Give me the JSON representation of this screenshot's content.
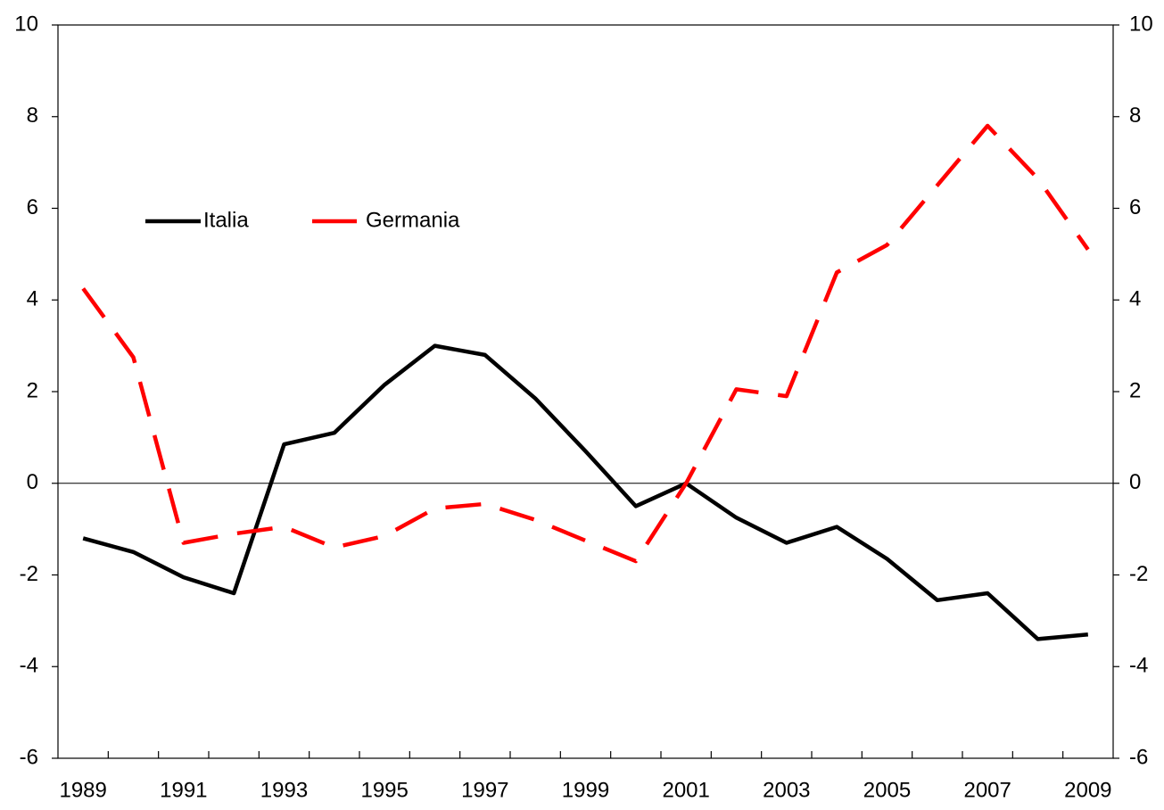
{
  "chart_data": {
    "type": "line",
    "categories": [
      "1989",
      null,
      "1991",
      null,
      "1993",
      null,
      "1995",
      null,
      "1997",
      null,
      "1999",
      null,
      "2001",
      null,
      "2003",
      null,
      "2005",
      null,
      "2007",
      null,
      "2009"
    ],
    "series": [
      {
        "name": "Italia",
        "color": "#000000",
        "dash": "solid",
        "values": [
          -1.2,
          -1.5,
          -2.05,
          -2.4,
          0.85,
          1.1,
          2.15,
          3.0,
          2.8,
          1.85,
          0.7,
          -0.5,
          0,
          -0.75,
          -1.3,
          -0.95,
          -1.65,
          -2.55,
          -2.4,
          -3.4,
          -3.3
        ]
      },
      {
        "name": "Germania",
        "color": "#ff0000",
        "dash": "dashed",
        "values": [
          4.25,
          2.75,
          -1.3,
          -1.1,
          -0.95,
          -1.4,
          -1.15,
          -0.55,
          -0.45,
          -0.8,
          -1.25,
          -1.7,
          0,
          2.05,
          1.9,
          4.6,
          5.2,
          6.5,
          7.8,
          6.65,
          5.1
        ]
      }
    ],
    "ylim": [
      -6,
      10
    ],
    "yticks": [
      -6,
      -4,
      -2,
      0,
      2,
      4,
      6,
      8,
      10
    ],
    "y2lim": [
      -6,
      10
    ],
    "y2ticks": [
      -6,
      -4,
      -2,
      0,
      2,
      4,
      6,
      8,
      10
    ],
    "grid": false,
    "legend": "upper left"
  }
}
